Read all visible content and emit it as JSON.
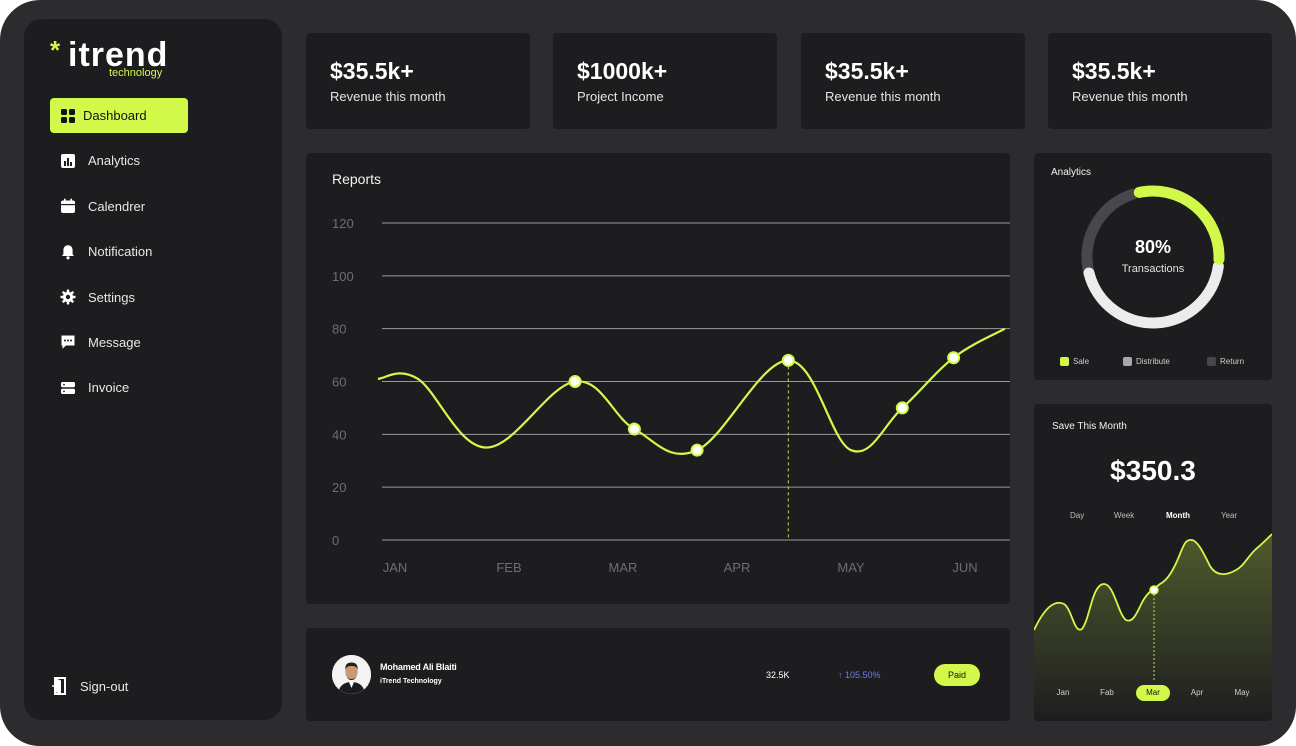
{
  "brand": {
    "name": "itrend",
    "tagline": "technology",
    "accent": "#d2f94a"
  },
  "sidebar": {
    "items": [
      {
        "label": "Dashboard",
        "icon": "grid-icon",
        "active": true
      },
      {
        "label": "Analytics",
        "icon": "bar-chart-icon"
      },
      {
        "label": "Calendrer",
        "icon": "calendar-icon"
      },
      {
        "label": "Notification",
        "icon": "bell-icon"
      },
      {
        "label": "Settings",
        "icon": "gear-icon"
      },
      {
        "label": "Message",
        "icon": "chat-icon"
      },
      {
        "label": "Invoice",
        "icon": "server-icon"
      }
    ],
    "signout_label": "Sign-out"
  },
  "stats": [
    {
      "value": "$35.5k+",
      "label": "Revenue this month"
    },
    {
      "value": "$1000k+",
      "label": "Project Income"
    },
    {
      "value": "$35.5k+",
      "label": "Revenue this month"
    },
    {
      "value": "$35.5k+",
      "label": "Revenue this month"
    }
  ],
  "reports": {
    "title": "Reports",
    "yticks": [
      "120",
      "100",
      "80",
      "60",
      "40",
      "20",
      "0"
    ],
    "xticks": [
      "JAN",
      "FEB",
      "MAR",
      "APR",
      "MAY",
      "JUN"
    ]
  },
  "chart_data": [
    {
      "type": "line",
      "title": "Reports",
      "categories": [
        "JAN",
        "FEB",
        "MAR",
        "APR",
        "MAY",
        "JUN"
      ],
      "ylim": [
        0,
        120
      ],
      "grid": true,
      "highlight_x": 3.45,
      "x": [
        -0.15,
        0.2,
        0.8,
        1.58,
        2.1,
        2.65,
        3.45,
        4.0,
        4.45,
        4.9,
        5.35
      ],
      "y": [
        61,
        61,
        35,
        60,
        42,
        34,
        68,
        34,
        50,
        69,
        80
      ],
      "markers_x": [
        1.58,
        2.1,
        2.65,
        3.45,
        4.45,
        4.9
      ],
      "markers_y": [
        60,
        42,
        34,
        68,
        50,
        69
      ]
    },
    {
      "type": "pie",
      "title": "Analytics",
      "center_value": "80%",
      "center_label": "Transactions",
      "labels": [
        "Sale",
        "Distribute",
        "Return"
      ],
      "values": [
        30,
        45,
        25
      ],
      "colors": [
        "#d2f94a",
        "#ececec",
        "#48484c"
      ]
    },
    {
      "type": "area",
      "title": "Save This Month",
      "categories": [
        "Jan",
        "Feb",
        "Mar",
        "Apr",
        "May"
      ],
      "selected": "Mar",
      "values": [
        0.4,
        0.6,
        0.6,
        1.0,
        0.95
      ]
    }
  ],
  "analytics": {
    "title": "Analytics",
    "percent": "80%",
    "caption": "Transactions",
    "legend": [
      {
        "label": "Sale",
        "color": "#d2f94a"
      },
      {
        "label": "Distribute",
        "color": "#a9a9ad"
      },
      {
        "label": "Return",
        "color": "#48484c"
      }
    ]
  },
  "save": {
    "title": "Save This Month",
    "amount": "$350.3",
    "periods": [
      "Day",
      "Week",
      "Month",
      "Year"
    ],
    "selected_period": "Month",
    "months": [
      "Jan",
      "Fab",
      "Mar",
      "Apr",
      "May"
    ],
    "selected_month": "Mar"
  },
  "transaction": {
    "name": "Mohamed Ali Blaiti",
    "company": "iTrend Technology",
    "amount": "32.5K",
    "growth": "105.50%",
    "status": "Paid",
    "growth_color": "#6b7cf2"
  }
}
